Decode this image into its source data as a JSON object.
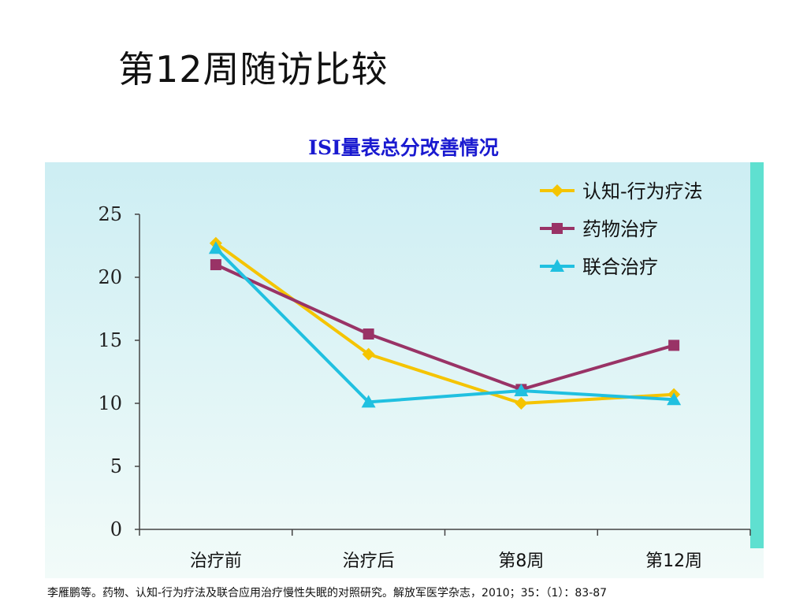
{
  "slide": {
    "title": "第12周随访比较",
    "citation": "李雁鹏等。药物、认知-行为疗法及联合应用治疗慢性失眠的对照研究。解放军医学杂志，2010；35：（1）：83-87"
  },
  "chart_data": {
    "type": "line",
    "title": "ISI量表总分改善情况",
    "xlabel": "",
    "ylabel": "",
    "categories": [
      "治疗前",
      "治疗后",
      "第8周",
      "第12周"
    ],
    "ylim": [
      0,
      25
    ],
    "yticks": [
      0,
      5,
      10,
      15,
      20,
      25
    ],
    "grid": false,
    "legend_position": "top-right",
    "series": [
      {
        "name": "认知-行为疗法",
        "color": "#f5c400",
        "marker": "diamond",
        "values": [
          22.7,
          13.9,
          10.0,
          10.7
        ]
      },
      {
        "name": "药物治疗",
        "color": "#993366",
        "marker": "square",
        "values": [
          21.0,
          15.5,
          11.1,
          14.6
        ]
      },
      {
        "name": "联合治疗",
        "color": "#20c0e0",
        "marker": "triangle",
        "values": [
          22.3,
          10.1,
          11.0,
          10.3
        ]
      }
    ]
  }
}
